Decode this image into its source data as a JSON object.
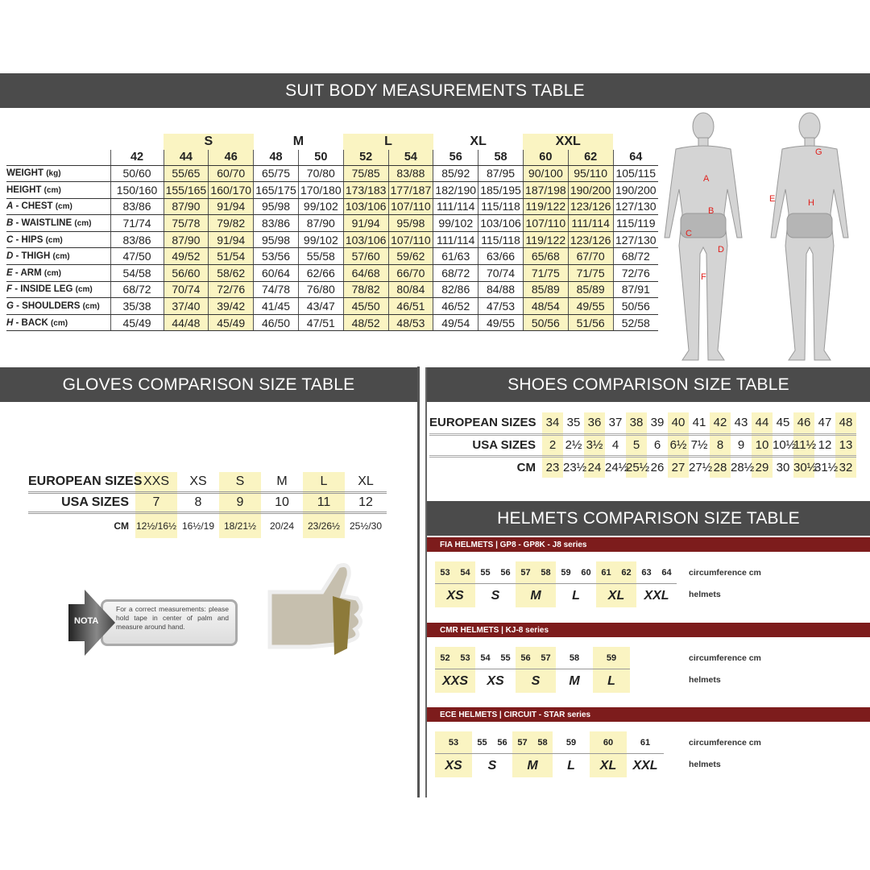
{
  "suit": {
    "title": "SUIT BODY MEASUREMENTS TABLE",
    "groups": [
      {
        "label": "",
        "span": 1
      },
      {
        "label": "S",
        "span": 2,
        "highlight": true
      },
      {
        "label": "M",
        "span": 2
      },
      {
        "label": "L",
        "span": 2,
        "highlight": true
      },
      {
        "label": "XL",
        "span": 2
      },
      {
        "label": "XXL",
        "span": 2,
        "highlight": true
      },
      {
        "label": "",
        "span": 1
      }
    ],
    "sizes": [
      "42",
      "44",
      "46",
      "48",
      "50",
      "52",
      "54",
      "56",
      "58",
      "60",
      "62",
      "64"
    ],
    "highlight_columns": [
      1,
      2,
      5,
      6,
      9,
      10
    ],
    "rows": [
      {
        "letter": "",
        "name": "WEIGHT",
        "unit": "(kg)",
        "values": [
          "50/60",
          "55/65",
          "60/70",
          "65/75",
          "70/80",
          "75/85",
          "83/88",
          "85/92",
          "87/95",
          "90/100",
          "95/110",
          "105/115"
        ]
      },
      {
        "letter": "",
        "name": "HEIGHT",
        "unit": "(cm)",
        "values": [
          "150/160",
          "155/165",
          "160/170",
          "165/175",
          "170/180",
          "173/183",
          "177/187",
          "182/190",
          "185/195",
          "187/198",
          "190/200",
          "190/200"
        ]
      },
      {
        "letter": "A",
        "name": " - CHEST",
        "unit": "(cm)",
        "values": [
          "83/86",
          "87/90",
          "91/94",
          "95/98",
          "99/102",
          "103/106",
          "107/110",
          "111/114",
          "115/118",
          "119/122",
          "123/126",
          "127/130"
        ]
      },
      {
        "letter": "B",
        "name": " - WAISTLINE",
        "unit": "(cm)",
        "values": [
          "71/74",
          "75/78",
          "79/82",
          "83/86",
          "87/90",
          "91/94",
          "95/98",
          "99/102",
          "103/106",
          "107/110",
          "111/114",
          "115/119"
        ]
      },
      {
        "letter": "C",
        "name": " - HIPS",
        "unit": "(cm)",
        "values": [
          "83/86",
          "87/90",
          "91/94",
          "95/98",
          "99/102",
          "103/106",
          "107/110",
          "111/114",
          "115/118",
          "119/122",
          "123/126",
          "127/130"
        ]
      },
      {
        "letter": "D",
        "name": " - THIGH",
        "unit": "(cm)",
        "values": [
          "47/50",
          "49/52",
          "51/54",
          "53/56",
          "55/58",
          "57/60",
          "59/62",
          "61/63",
          "63/66",
          "65/68",
          "67/70",
          "68/72"
        ]
      },
      {
        "letter": "E",
        "name": " - ARM",
        "unit": "(cm)",
        "values": [
          "54/58",
          "56/60",
          "58/62",
          "60/64",
          "62/66",
          "64/68",
          "66/70",
          "68/72",
          "70/74",
          "71/75",
          "71/75",
          "72/76"
        ]
      },
      {
        "letter": "F",
        "name": " - INSIDE LEG",
        "unit": "(cm)",
        "values": [
          "68/72",
          "70/74",
          "72/76",
          "74/78",
          "76/80",
          "78/82",
          "80/84",
          "82/86",
          "84/88",
          "85/89",
          "85/89",
          "87/91"
        ]
      },
      {
        "letter": "G",
        "name": " - SHOULDERS",
        "unit": "(cm)",
        "values": [
          "35/38",
          "37/40",
          "39/42",
          "41/45",
          "43/47",
          "45/50",
          "46/51",
          "46/52",
          "47/53",
          "48/54",
          "49/55",
          "50/56"
        ]
      },
      {
        "letter": "H",
        "name": " - BACK",
        "unit": "(cm)",
        "values": [
          "45/49",
          "44/48",
          "45/49",
          "46/50",
          "47/51",
          "48/52",
          "48/53",
          "49/54",
          "49/55",
          "50/56",
          "51/56",
          "52/58"
        ]
      }
    ],
    "figure_letters": {
      "front": [
        "A",
        "B",
        "C",
        "D",
        "F"
      ],
      "back": [
        "G",
        "E",
        "H"
      ]
    },
    "marker_color": "#e0201c"
  },
  "gloves": {
    "title": "GLOVES COMPARISON SIZE TABLE",
    "highlight_columns": [
      0,
      2,
      4
    ],
    "rows": [
      {
        "label": "EUROPEAN SIZES",
        "values": [
          "XXS",
          "XS",
          "S",
          "M",
          "L",
          "XL"
        ]
      },
      {
        "label": "USA SIZES",
        "values": [
          "7",
          "8",
          "9",
          "10",
          "11",
          "12"
        ]
      },
      {
        "label": "CM",
        "values": [
          "12½/16½",
          "16½/19",
          "18/21½",
          "20/24",
          "23/26½",
          "25½/30"
        ]
      }
    ],
    "nota": {
      "badge": "NOTA",
      "text": "For a correct measurements: please hold tape in center of palm and measure around hand."
    }
  },
  "shoes": {
    "title": "SHOES COMPARISON SIZE TABLE",
    "highlight_columns": [
      0,
      2,
      4,
      6,
      8,
      10,
      12,
      14
    ],
    "rows": [
      {
        "label": "EUROPEAN SIZES",
        "values": [
          "34",
          "35",
          "36",
          "37",
          "38",
          "39",
          "40",
          "41",
          "42",
          "43",
          "44",
          "45",
          "46",
          "47",
          "48"
        ]
      },
      {
        "label": "USA SIZES",
        "values": [
          "2",
          "2½",
          "3½",
          "4",
          "5",
          "6",
          "6½",
          "7½",
          "8",
          "9",
          "10",
          "10½",
          "11½",
          "12",
          "13"
        ]
      },
      {
        "label": "CM",
        "values": [
          "23",
          "23½",
          "24",
          "24½",
          "25½",
          "26",
          "27",
          "27½",
          "28",
          "28½",
          "29",
          "30",
          "30½",
          "31½",
          "32"
        ]
      }
    ]
  },
  "helmets": {
    "title": "HELMETS COMPARISON SIZE TABLE",
    "circumference_label": "circumference cm",
    "helmets_label": "helmets",
    "accent": "#7d1c1c",
    "series": [
      {
        "title": "FIA HELMETS | GP8 - GP8K - J8 series",
        "groups": [
          {
            "size": "XS",
            "circ": [
              "53",
              "54"
            ],
            "highlight": true
          },
          {
            "size": "S",
            "circ": [
              "55",
              "56"
            ]
          },
          {
            "size": "M",
            "circ": [
              "57",
              "58"
            ],
            "highlight": true
          },
          {
            "size": "L",
            "circ": [
              "59",
              "60"
            ]
          },
          {
            "size": "XL",
            "circ": [
              "61",
              "62"
            ],
            "highlight": true
          },
          {
            "size": "XXL",
            "circ": [
              "63",
              "64"
            ]
          }
        ]
      },
      {
        "title": "CMR HELMETS | KJ-8 series",
        "groups": [
          {
            "size": "XXS",
            "circ": [
              "52",
              "53"
            ],
            "highlight": true
          },
          {
            "size": "XS",
            "circ": [
              "54",
              "55"
            ]
          },
          {
            "size": "S",
            "circ": [
              "56",
              "57"
            ],
            "highlight": true
          },
          {
            "size": "M",
            "circ": [
              "58"
            ]
          },
          {
            "size": "L",
            "circ": [
              "59"
            ],
            "highlight": true
          }
        ]
      },
      {
        "title": "ECE HELMETS | CIRCUIT - STAR series",
        "groups": [
          {
            "size": "XS",
            "circ": [
              "53"
            ],
            "highlight": true
          },
          {
            "size": "S",
            "circ": [
              "55",
              "56"
            ]
          },
          {
            "size": "M",
            "circ": [
              "57",
              "58"
            ],
            "highlight": true
          },
          {
            "size": "L",
            "circ": [
              "59"
            ]
          },
          {
            "size": "XL",
            "circ": [
              "60"
            ],
            "highlight": true
          },
          {
            "size": "XXL",
            "circ": [
              "61"
            ]
          }
        ]
      }
    ]
  }
}
